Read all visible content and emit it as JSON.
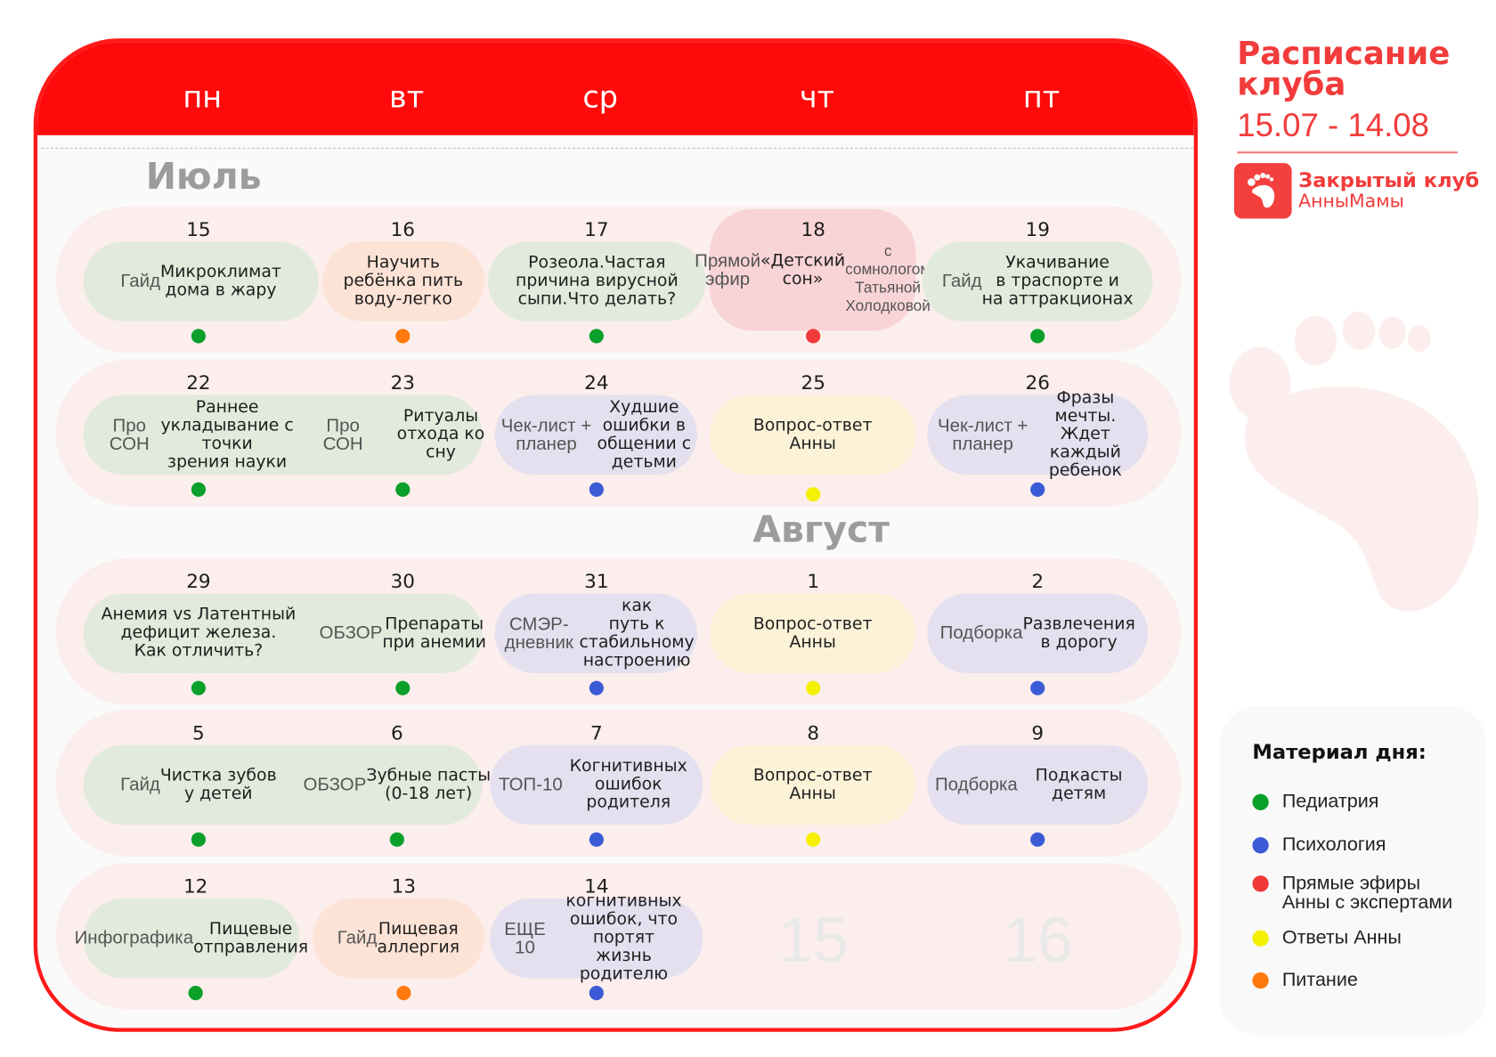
{
  "colors": {
    "accent": "#ff0a0a",
    "pediatrics": "#0aa02a",
    "psychology": "#3b5bd6",
    "live": "#f03a3a",
    "answers": "#f5f000",
    "nutrition": "#ff7a0e",
    "pill_pediatrics": "#e1eadb",
    "pill_psychology": "#e4e0ef",
    "pill_live": "#f9d4d7",
    "pill_answers": "#fcf2d8",
    "pill_nutrition": "#fde3d6"
  },
  "days": [
    "пн",
    "вт",
    "ср",
    "чт",
    "пт"
  ],
  "months": {
    "july": "Июль",
    "august": "Август"
  },
  "rows": [
    {
      "cells": [
        {
          "day": "15",
          "cat": "pediatrics",
          "prefix": "Гайд",
          "text": "  Микроклимат\nдома в жару"
        },
        {
          "day": "16",
          "cat": "nutrition",
          "prefix": "",
          "text": "Научить\nребёнка пить\nводу-легко"
        },
        {
          "day": "17",
          "cat": "pediatrics",
          "prefix": "",
          "text": "Розеола.Частая\nпричина вирусной\nсыпи.Что делать?"
        },
        {
          "day": "18",
          "cat": "live",
          "prefix": "Прямой эфир\n",
          "text": "«Детский сон»",
          "suffix": "\nс сомнологом\nТатьяной Холодковой"
        },
        {
          "day": "19",
          "cat": "pediatrics",
          "prefix": "Гайд",
          "text": " Укачивание\nв траспорте и\nна аттракционах"
        }
      ]
    },
    {
      "cells": [
        {
          "day": "22",
          "cat": "pediatrics",
          "prefix": "Про СОН",
          "text": " Раннее\nукладывание с точки\nзрения науки"
        },
        {
          "day": "23",
          "cat": "pediatrics",
          "prefix": "Про СОН\n",
          "text": "Ритуалы\nотхода ко сну"
        },
        {
          "day": "24",
          "cat": "psychology",
          "prefix": "Чек-лист + планер\n",
          "text": "Худшие ошибки в\nобщении с детьми"
        },
        {
          "day": "25",
          "cat": "answers",
          "prefix": "",
          "text": "Вопрос-ответ\nАнны"
        },
        {
          "day": "26",
          "cat": "psychology",
          "prefix": "Чек-лист + планер\n",
          "text": "Фразы мечты. Ждет\nкаждый ребенок"
        }
      ]
    },
    {
      "cells": [
        {
          "day": "29",
          "cat": "pediatrics",
          "prefix": "",
          "text": "Анемия vs Латентный\nдефицит железа.\nКак отличить?"
        },
        {
          "day": "30",
          "cat": "pediatrics",
          "prefix": "ОБЗОР\n",
          "text": "Препараты\nпри анемии"
        },
        {
          "day": "31",
          "cat": "psychology",
          "prefix": "СМЭР-дневник",
          "text": " как\nпуть к стабильному\nнастроению"
        },
        {
          "day": "1",
          "cat": "answers",
          "prefix": "",
          "text": "Вопрос-ответ\nАнны"
        },
        {
          "day": "2",
          "cat": "psychology",
          "prefix": "Подборка\n",
          "text": "Развлечения\nв дорогу"
        }
      ]
    },
    {
      "cells": [
        {
          "day": "5",
          "cat": "pediatrics",
          "prefix": "Гайд",
          "text": " Чистка зубов\nу детей"
        },
        {
          "day": "6",
          "cat": "pediatrics",
          "prefix": "ОБЗОР\n",
          "text": "Зубные пасты\n(0-18 лет)"
        },
        {
          "day": "7",
          "cat": "psychology",
          "prefix": "ТОП-10\n",
          "text": "Когнитивных\nошибок родителя"
        },
        {
          "day": "8",
          "cat": "answers",
          "prefix": "",
          "text": "Вопрос-ответ\nАнны"
        },
        {
          "day": "9",
          "cat": "psychology",
          "prefix": "Подборка\n",
          "text": "Подкасты детям"
        }
      ]
    },
    {
      "cells": [
        {
          "day": "12",
          "cat": "pediatrics",
          "prefix": "Инфографика\n",
          "text": "Пищевые\nотправления"
        },
        {
          "day": "13",
          "cat": "nutrition",
          "prefix": "Гайд\n",
          "text": "Пищевая\nаллергия"
        },
        {
          "day": "14",
          "cat": "psychology",
          "prefix": "ЕЩЕ 10",
          "text": " когнитивных\nошибок, что портят\nжизнь родителю"
        }
      ],
      "ghost_days": [
        "15",
        "16"
      ]
    }
  ],
  "sidebar": {
    "title": "Расписание\nклуба",
    "dates": "15.07 - 14.08",
    "club_name": "Закрытый клуб",
    "club_name2": "АнныМамы",
    "logo_icon": "footprint-icon"
  },
  "legend": {
    "title": "Материал дня:",
    "items": [
      {
        "cat": "pediatrics",
        "label": "Педиатрия"
      },
      {
        "cat": "psychology",
        "label": "Психология"
      },
      {
        "cat": "live",
        "label": "Прямые эфиры\nАнны с экспертами"
      },
      {
        "cat": "answers",
        "label": "Ответы Анны"
      },
      {
        "cat": "nutrition",
        "label": "Питание"
      }
    ]
  }
}
